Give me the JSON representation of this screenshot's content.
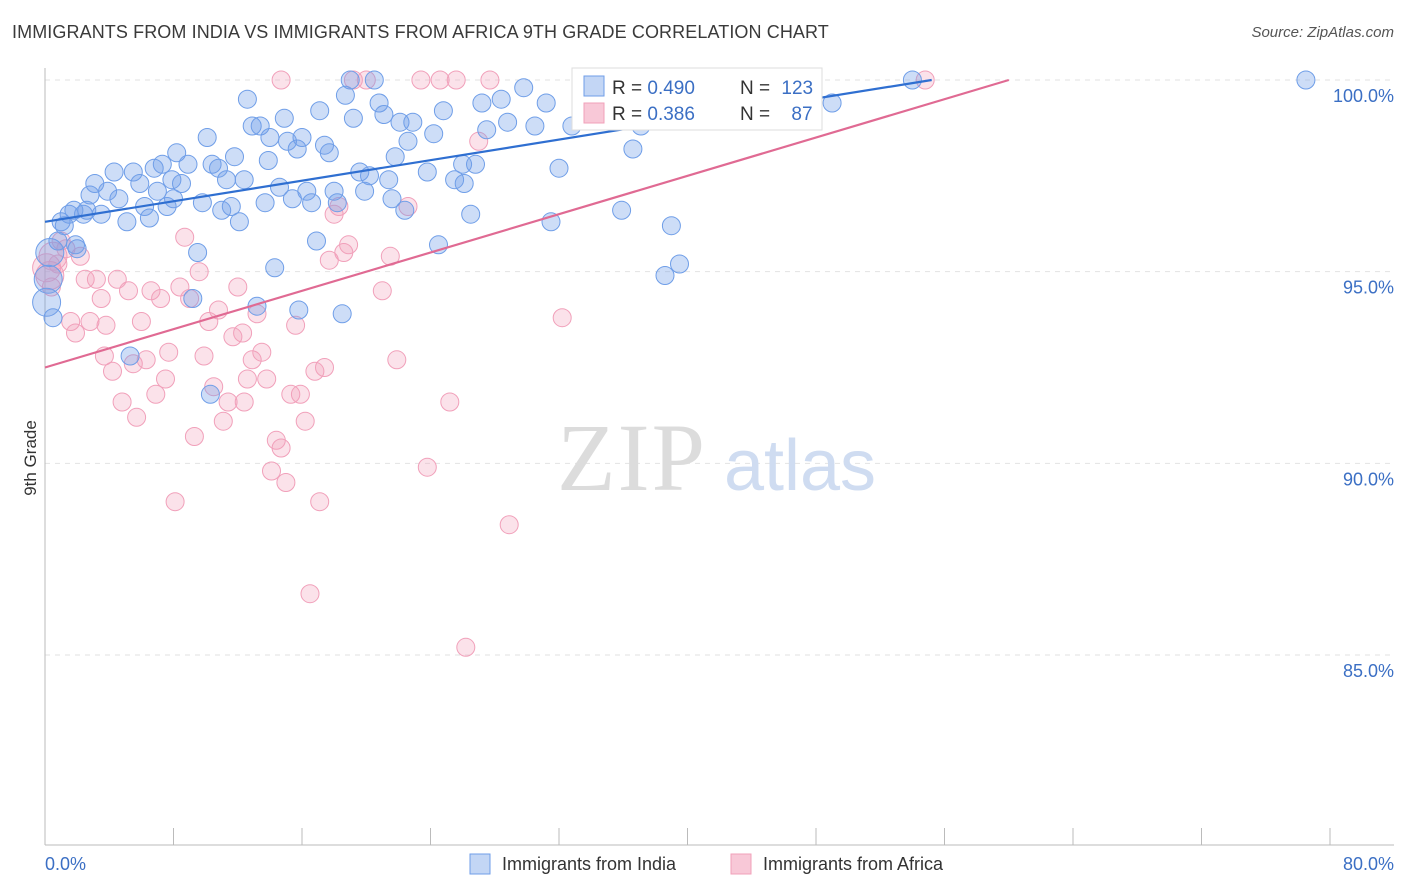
{
  "title": "IMMIGRANTS FROM INDIA VS IMMIGRANTS FROM AFRICA 9TH GRADE CORRELATION CHART",
  "source": "Source: ZipAtlas.com",
  "watermark": {
    "zip": "ZIP",
    "atlas": "atlas"
  },
  "colors": {
    "india": "#6f9ee8",
    "india_line": "#2f6fd1",
    "africa": "#f1a0ba",
    "africa_line": "#e06a93",
    "tick_text": "#3b6fc4"
  },
  "stats": {
    "india": {
      "r_label": "R = ",
      "r_value": "0.490",
      "n_label": "N = ",
      "n_value": "123"
    },
    "africa": {
      "r_label": "R = ",
      "r_value": "0.386",
      "n_label": "N = ",
      "n_value": "87"
    }
  },
  "chart_data": {
    "type": "scatter",
    "title": "IMMIGRANTS FROM INDIA VS IMMIGRANTS FROM AFRICA 9TH GRADE CORRELATION CHART",
    "xlabel": "",
    "ylabel": "9th Grade",
    "xlim": [
      0,
      80
    ],
    "ylim": [
      80.5,
      100.8
    ],
    "x_tick_labels": [
      "0.0%",
      "80.0%"
    ],
    "y_ticks": [
      85,
      90,
      95,
      100
    ],
    "y_tick_labels": [
      "85.0%",
      "90.0%",
      "95.0%",
      "100.0%"
    ],
    "grid": true,
    "legend_position": "bottom",
    "series": [
      {
        "name": "Immigrants from India",
        "color": "#6f9ee8",
        "trend": {
          "x": [
            0,
            55.2
          ],
          "y": [
            96.3,
            100.0
          ]
        },
        "points": [
          [
            0.1,
            94.2
          ],
          [
            0.2,
            94.8
          ],
          [
            0.3,
            95.5
          ],
          [
            0.5,
            93.8
          ],
          [
            0.8,
            95.8
          ],
          [
            1.0,
            96.3
          ],
          [
            1.2,
            96.2
          ],
          [
            1.5,
            96.5
          ],
          [
            1.8,
            96.6
          ],
          [
            2.0,
            95.6
          ],
          [
            2.4,
            96.5
          ],
          [
            2.8,
            97.0
          ],
          [
            3.1,
            97.3
          ],
          [
            3.5,
            96.5
          ],
          [
            3.9,
            97.1
          ],
          [
            4.3,
            97.6
          ],
          [
            4.6,
            96.9
          ],
          [
            5.1,
            96.3
          ],
          [
            5.5,
            97.6
          ],
          [
            5.9,
            97.3
          ],
          [
            6.2,
            96.7
          ],
          [
            6.5,
            96.4
          ],
          [
            7.0,
            97.1
          ],
          [
            7.3,
            97.8
          ],
          [
            7.6,
            96.7
          ],
          [
            7.9,
            97.4
          ],
          [
            8.2,
            98.1
          ],
          [
            8.5,
            97.3
          ],
          [
            8.9,
            97.8
          ],
          [
            9.2,
            94.3
          ],
          [
            9.5,
            95.5
          ],
          [
            9.8,
            96.8
          ],
          [
            10.1,
            98.5
          ],
          [
            10.4,
            97.8
          ],
          [
            10.8,
            97.7
          ],
          [
            11.0,
            96.6
          ],
          [
            11.3,
            97.4
          ],
          [
            11.6,
            96.7
          ],
          [
            11.8,
            98.0
          ],
          [
            12.1,
            96.3
          ],
          [
            12.4,
            97.4
          ],
          [
            12.6,
            99.5
          ],
          [
            12.9,
            98.8
          ],
          [
            13.2,
            94.1
          ],
          [
            13.4,
            98.8
          ],
          [
            13.7,
            96.8
          ],
          [
            14.0,
            98.5
          ],
          [
            14.3,
            95.1
          ],
          [
            14.6,
            97.2
          ],
          [
            14.9,
            99.0
          ],
          [
            15.1,
            98.4
          ],
          [
            15.4,
            96.9
          ],
          [
            15.7,
            98.2
          ],
          [
            16.0,
            98.5
          ],
          [
            16.3,
            97.1
          ],
          [
            16.6,
            96.8
          ],
          [
            16.9,
            95.8
          ],
          [
            17.1,
            99.2
          ],
          [
            17.4,
            98.3
          ],
          [
            17.7,
            98.1
          ],
          [
            18.0,
            97.1
          ],
          [
            18.2,
            96.8
          ],
          [
            18.5,
            93.9
          ],
          [
            18.7,
            99.6
          ],
          [
            19.0,
            100.0
          ],
          [
            19.2,
            99.0
          ],
          [
            19.6,
            97.6
          ],
          [
            19.9,
            97.1
          ],
          [
            20.2,
            97.5
          ],
          [
            20.5,
            100.0
          ],
          [
            20.8,
            99.4
          ],
          [
            21.1,
            99.1
          ],
          [
            21.4,
            97.4
          ],
          [
            21.8,
            98.0
          ],
          [
            22.1,
            98.9
          ],
          [
            22.4,
            96.6
          ],
          [
            22.6,
            98.4
          ],
          [
            22.9,
            98.9
          ],
          [
            23.8,
            97.6
          ],
          [
            24.2,
            98.6
          ],
          [
            24.5,
            95.7
          ],
          [
            24.8,
            99.2
          ],
          [
            25.5,
            97.4
          ],
          [
            26.0,
            97.8
          ],
          [
            26.5,
            96.5
          ],
          [
            26.8,
            97.8
          ],
          [
            27.2,
            99.4
          ],
          [
            27.5,
            98.7
          ],
          [
            28.4,
            99.5
          ],
          [
            28.8,
            98.9
          ],
          [
            29.8,
            99.8
          ],
          [
            30.5,
            98.8
          ],
          [
            31.2,
            99.4
          ],
          [
            32.0,
            97.7
          ],
          [
            32.8,
            98.8
          ],
          [
            34.0,
            99.3
          ],
          [
            35.0,
            100.0
          ],
          [
            35.6,
            99.0
          ],
          [
            36.6,
            98.2
          ],
          [
            37.1,
            98.8
          ],
          [
            38.0,
            99.1
          ],
          [
            39.0,
            96.2
          ],
          [
            38.6,
            94.9
          ],
          [
            39.5,
            95.2
          ],
          [
            40.0,
            99.3
          ],
          [
            41.0,
            99.8
          ],
          [
            42.0,
            100.0
          ],
          [
            47.5,
            100.0
          ],
          [
            49.0,
            99.4
          ],
          [
            54.0,
            100.0
          ],
          [
            78.5,
            100.0
          ],
          [
            31.5,
            96.3
          ],
          [
            35.9,
            96.6
          ],
          [
            1.9,
            95.7
          ],
          [
            2.6,
            96.6
          ],
          [
            6.8,
            97.7
          ],
          [
            5.3,
            92.8
          ],
          [
            10.3,
            91.8
          ],
          [
            15.8,
            94.0
          ],
          [
            21.6,
            96.9
          ],
          [
            13.9,
            97.9
          ],
          [
            8.0,
            96.9
          ],
          [
            26.1,
            97.3
          ]
        ]
      },
      {
        "name": "Immigrants from Africa",
        "color": "#f1a0ba",
        "trend": {
          "x": [
            0,
            60.0
          ],
          "y": [
            92.5,
            100.0
          ]
        },
        "points": [
          [
            0.1,
            95.1
          ],
          [
            0.3,
            94.9
          ],
          [
            0.5,
            95.4
          ],
          [
            0.8,
            95.2
          ],
          [
            1.0,
            95.8
          ],
          [
            1.3,
            95.6
          ],
          [
            1.6,
            93.7
          ],
          [
            1.9,
            93.4
          ],
          [
            2.2,
            95.4
          ],
          [
            2.5,
            94.8
          ],
          [
            2.8,
            93.7
          ],
          [
            3.2,
            94.8
          ],
          [
            3.5,
            94.3
          ],
          [
            3.8,
            93.6
          ],
          [
            4.2,
            92.4
          ],
          [
            4.5,
            94.8
          ],
          [
            4.8,
            91.6
          ],
          [
            5.2,
            94.5
          ],
          [
            5.5,
            92.6
          ],
          [
            5.7,
            91.2
          ],
          [
            6.0,
            93.7
          ],
          [
            6.3,
            92.7
          ],
          [
            6.6,
            94.5
          ],
          [
            6.9,
            91.8
          ],
          [
            7.2,
            94.3
          ],
          [
            7.5,
            92.2
          ],
          [
            7.7,
            92.9
          ],
          [
            8.1,
            89.0
          ],
          [
            8.4,
            94.6
          ],
          [
            8.7,
            95.9
          ],
          [
            9.0,
            94.3
          ],
          [
            9.3,
            90.7
          ],
          [
            9.6,
            95.0
          ],
          [
            9.9,
            92.8
          ],
          [
            10.2,
            93.7
          ],
          [
            10.5,
            92.0
          ],
          [
            10.8,
            94.0
          ],
          [
            11.1,
            91.1
          ],
          [
            11.4,
            91.6
          ],
          [
            11.7,
            93.3
          ],
          [
            12.0,
            94.6
          ],
          [
            12.3,
            93.4
          ],
          [
            12.6,
            92.2
          ],
          [
            12.9,
            92.7
          ],
          [
            13.2,
            93.9
          ],
          [
            13.5,
            92.9
          ],
          [
            13.8,
            92.2
          ],
          [
            14.1,
            89.8
          ],
          [
            14.4,
            90.6
          ],
          [
            14.7,
            90.4
          ],
          [
            15.0,
            89.5
          ],
          [
            15.3,
            91.8
          ],
          [
            15.6,
            93.6
          ],
          [
            15.9,
            91.8
          ],
          [
            16.2,
            91.1
          ],
          [
            16.5,
            86.6
          ],
          [
            16.8,
            92.4
          ],
          [
            17.1,
            89.0
          ],
          [
            17.4,
            92.5
          ],
          [
            17.7,
            95.3
          ],
          [
            18.0,
            96.5
          ],
          [
            18.3,
            96.7
          ],
          [
            18.6,
            95.5
          ],
          [
            18.9,
            95.7
          ],
          [
            19.2,
            100.0
          ],
          [
            20.0,
            100.0
          ],
          [
            21.0,
            94.5
          ],
          [
            21.5,
            95.4
          ],
          [
            21.9,
            92.7
          ],
          [
            22.6,
            96.7
          ],
          [
            23.4,
            100.0
          ],
          [
            23.8,
            89.9
          ],
          [
            24.6,
            100.0
          ],
          [
            25.2,
            91.6
          ],
          [
            25.6,
            100.0
          ],
          [
            26.2,
            85.2
          ],
          [
            27.0,
            98.4
          ],
          [
            27.7,
            100.0
          ],
          [
            28.9,
            88.4
          ],
          [
            32.2,
            93.8
          ],
          [
            34.6,
            100.0
          ],
          [
            36.1,
            100.0
          ],
          [
            54.8,
            100.0
          ],
          [
            14.7,
            100.0
          ],
          [
            0.4,
            94.6
          ],
          [
            3.7,
            92.8
          ],
          [
            12.4,
            91.6
          ]
        ]
      }
    ]
  },
  "legend": {
    "india_label": "Immigrants from India",
    "africa_label": "Immigrants from Africa"
  }
}
